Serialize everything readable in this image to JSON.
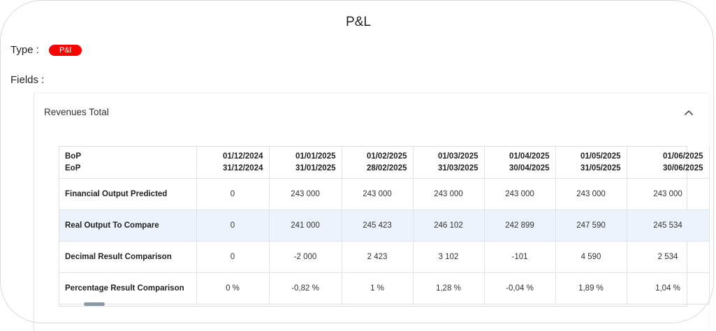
{
  "page": {
    "title": "P&L"
  },
  "type": {
    "label": "Type :",
    "badge": "P&l",
    "badge_color": "#ff0000"
  },
  "fields": {
    "label": "Fields :"
  },
  "accordion": {
    "title": "Revenues Total",
    "icon": "chevron-up-icon"
  },
  "table": {
    "header": {
      "bop": "BoP",
      "eop": "EoP"
    },
    "columns": [
      {
        "bop": "01/12/2024",
        "eop": "31/12/2024"
      },
      {
        "bop": "01/01/2025",
        "eop": "31/01/2025"
      },
      {
        "bop": "01/02/2025",
        "eop": "28/02/2025"
      },
      {
        "bop": "01/03/2025",
        "eop": "31/03/2025"
      },
      {
        "bop": "01/04/2025",
        "eop": "30/04/2025"
      },
      {
        "bop": "01/05/2025",
        "eop": "31/05/2025"
      },
      {
        "bop": "01/06/2025",
        "eop": "30/06/2025"
      }
    ],
    "rows": [
      {
        "label": "Financial Output Predicted",
        "values": [
          "0",
          "243 000",
          "243 000",
          "243 000",
          "243 000",
          "243 000",
          "243 000"
        ]
      },
      {
        "label": "Real Output To Compare",
        "values": [
          "0",
          "241 000",
          "245 423",
          "246 102",
          "242 899",
          "247 590",
          "245 534"
        ]
      },
      {
        "label": "Decimal Result Comparison",
        "values": [
          "0",
          "-2 000",
          "2 423",
          "3 102",
          "-101",
          "4 590",
          "2 534"
        ]
      },
      {
        "label": "Percentage Result Comparison",
        "values": [
          "0 %",
          "-0,82 %",
          "1 %",
          "1,28 %",
          "-0,04 %",
          "1,89 %",
          "1,04 %"
        ]
      }
    ]
  }
}
